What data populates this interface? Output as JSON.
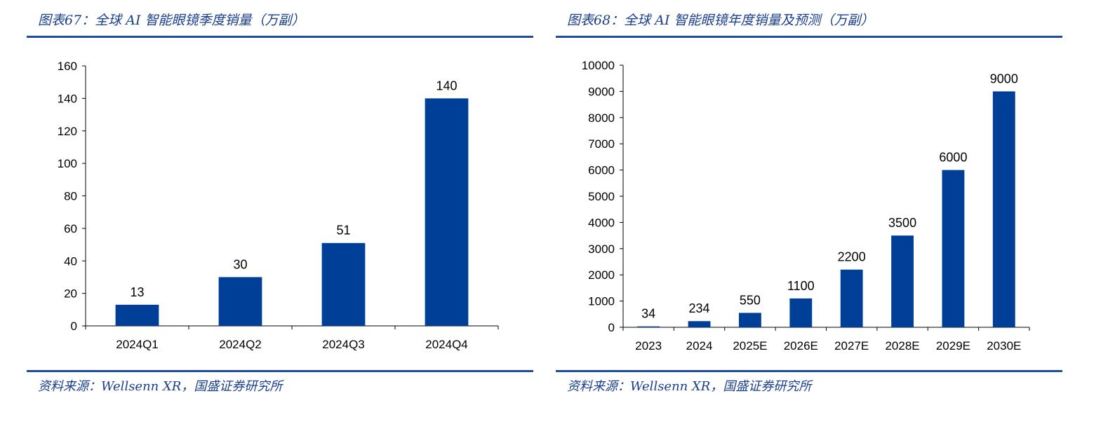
{
  "figures": [
    {
      "title": "图表67：全球 AI 智能眼镜季度销量（万副）",
      "source": "资料来源：Wellsenn XR，国盛证券研究所"
    },
    {
      "title": "图表68：全球 AI 智能眼镜年度销量及预测（万副）",
      "source": "资料来源：Wellsenn XR，国盛证券研究所"
    }
  ],
  "colors": {
    "bar": "#003f98",
    "axis": "#000000",
    "rule": "#1f4e9c",
    "title": "#1a3f8f"
  },
  "chart_data": [
    {
      "type": "bar",
      "title": "全球 AI 智能眼镜季度销量（万副）",
      "categories": [
        "2024Q1",
        "2024Q2",
        "2024Q3",
        "2024Q4"
      ],
      "values": [
        13,
        30,
        51,
        140
      ],
      "data_labels": [
        "13",
        "30",
        "51",
        "140"
      ],
      "ylim": [
        0,
        160
      ],
      "yticks": [
        0,
        20,
        40,
        60,
        80,
        100,
        120,
        140,
        160
      ],
      "ytick_labels": [
        "0",
        "20",
        "40",
        "60",
        "80",
        "100",
        "120",
        "140",
        "160"
      ],
      "grid": false,
      "legend": "none"
    },
    {
      "type": "bar",
      "title": "全球 AI 智能眼镜年度销量及预测（万副）",
      "categories": [
        "2023",
        "2024",
        "2025E",
        "2026E",
        "2027E",
        "2028E",
        "2029E",
        "2030E"
      ],
      "values": [
        34,
        234,
        550,
        1100,
        2200,
        3500,
        6000,
        9000
      ],
      "data_labels": [
        "34",
        "234",
        "550",
        "1100",
        "2200",
        "3500",
        "6000",
        "9000"
      ],
      "ylim": [
        0,
        10000
      ],
      "yticks": [
        0,
        1000,
        2000,
        3000,
        4000,
        5000,
        6000,
        7000,
        8000,
        9000,
        10000
      ],
      "ytick_labels": [
        "0",
        "1000",
        "2000",
        "3000",
        "4000",
        "5000",
        "6000",
        "7000",
        "8000",
        "9000",
        "10000"
      ],
      "grid": false,
      "legend": "none"
    }
  ]
}
